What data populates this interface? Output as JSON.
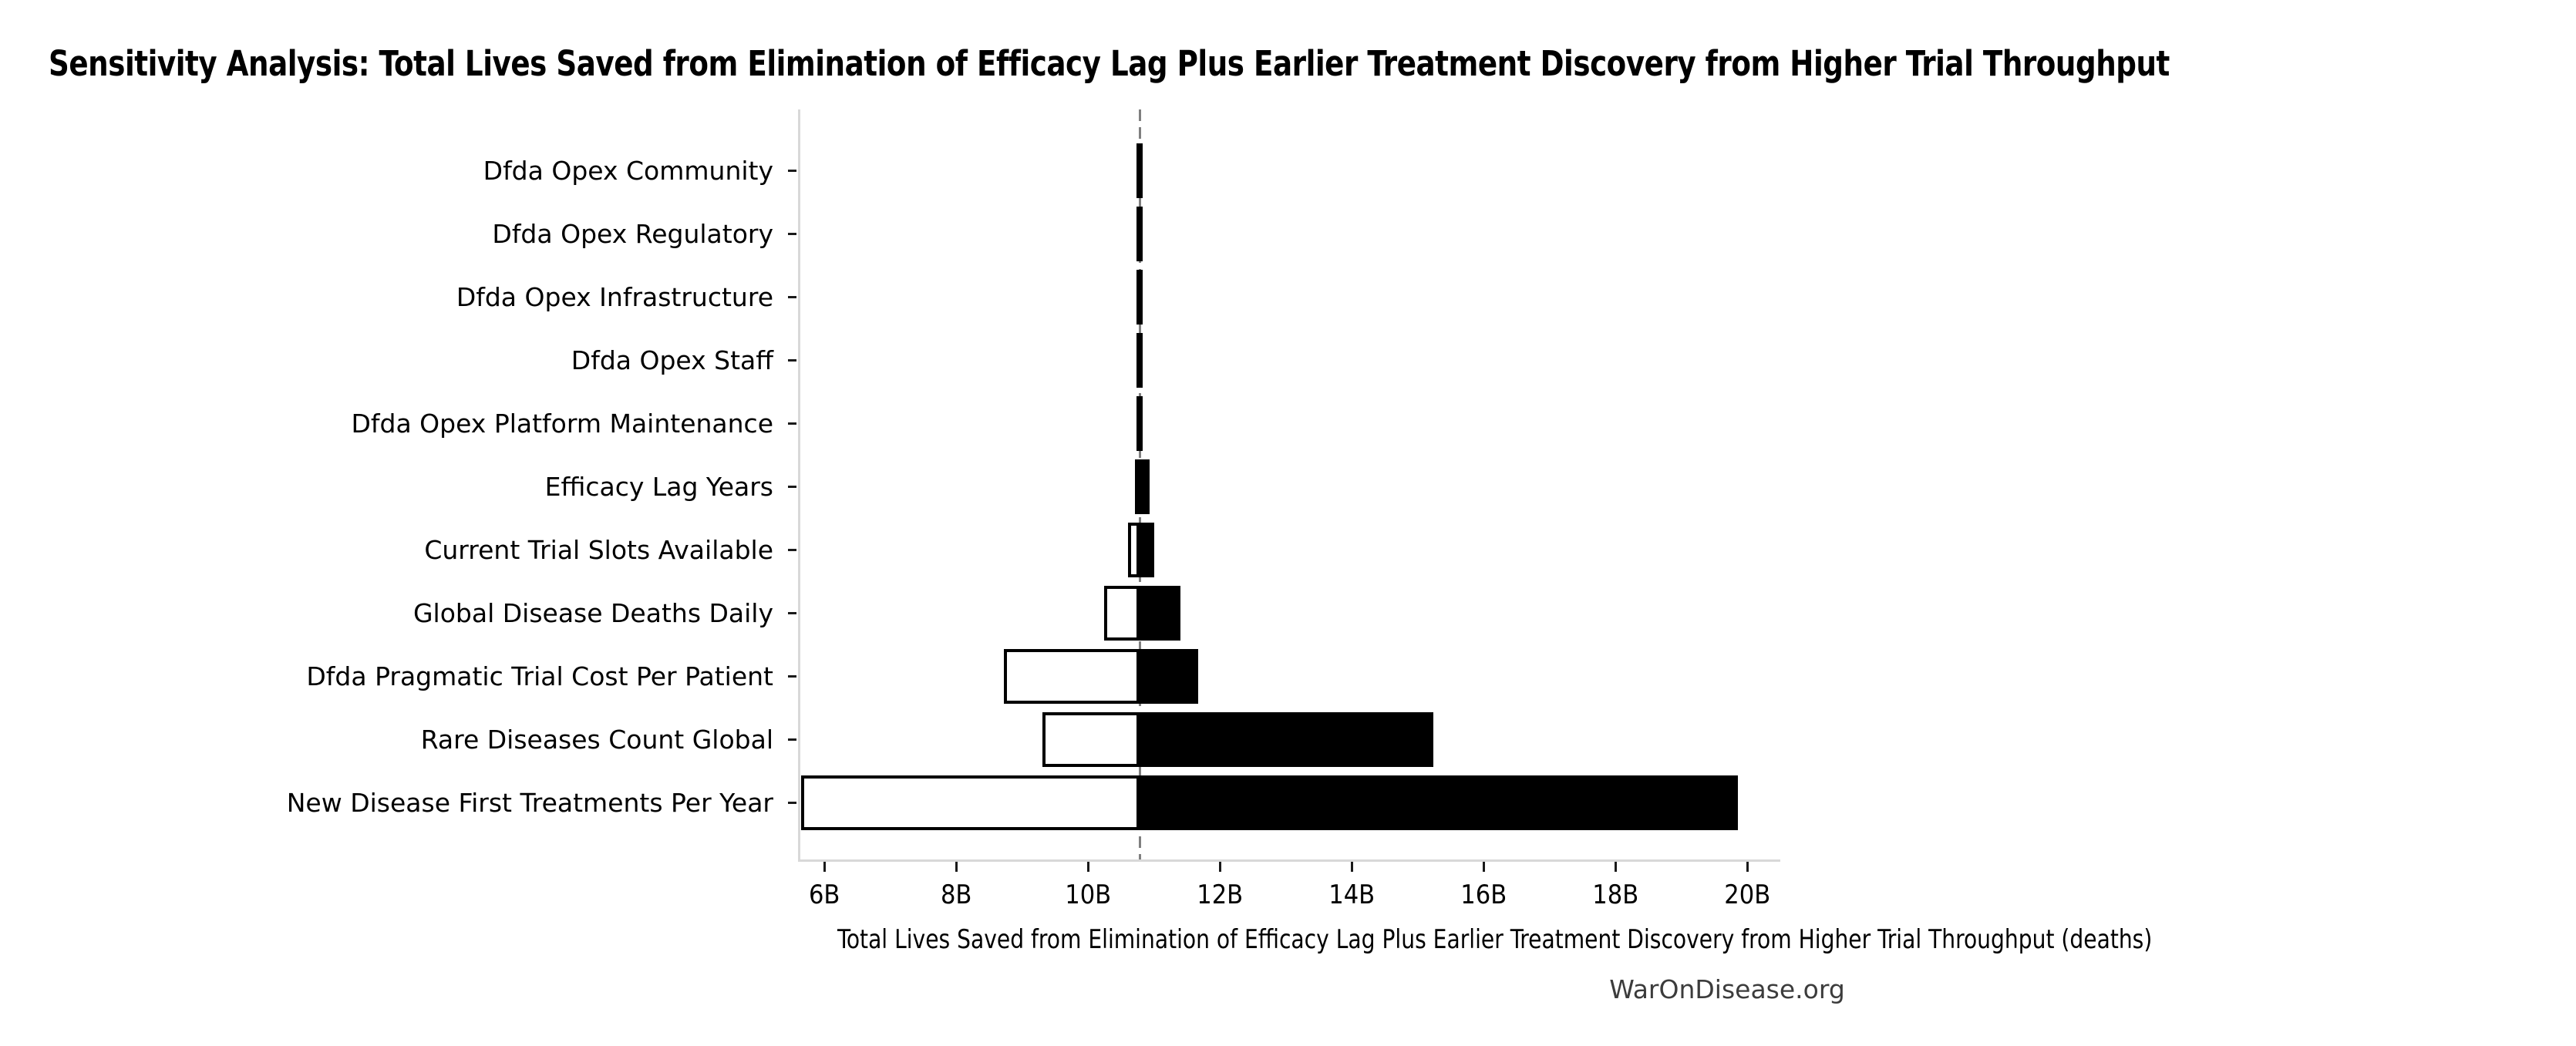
{
  "title": "Sensitivity Analysis: Total Lives Saved from Elimination of Efficacy Lag Plus Earlier Treatment Discovery from Higher Trial Throughput",
  "watermark": "WarOnDisease.org",
  "chart_data": {
    "type": "bar",
    "variant": "tornado-sensitivity",
    "orientation": "horizontal",
    "title": "Sensitivity Analysis: Total Lives Saved from Elimination of Efficacy Lag Plus Earlier Treatment Discovery from Higher Trial Throughput",
    "xlabel": "Total Lives Saved from Elimination of Efficacy Lag Plus Earlier Treatment Discovery from Higher Trial Throughput (deaths)",
    "ylabel": "",
    "value_unit": "B",
    "xlim": [
      5.6,
      20.5
    ],
    "x_tick_values": [
      6,
      8,
      10,
      12,
      14,
      16,
      18,
      20
    ],
    "x_tick_labels": [
      "6B",
      "8B",
      "10B",
      "12B",
      "14B",
      "16B",
      "18B",
      "20B"
    ],
    "baseline_value": 10.75,
    "grid": false,
    "legend": null,
    "rows": [
      {
        "label": "Dfda Opex Community",
        "low": 10.74,
        "high": 10.76
      },
      {
        "label": "Dfda Opex Regulatory",
        "low": 10.74,
        "high": 10.76
      },
      {
        "label": "Dfda Opex Infrastructure",
        "low": 10.74,
        "high": 10.76
      },
      {
        "label": "Dfda Opex Staff",
        "low": 10.74,
        "high": 10.76
      },
      {
        "label": "Dfda Opex Platform Maintenance",
        "low": 10.74,
        "high": 10.76
      },
      {
        "label": "Efficacy Lag Years",
        "low": 10.67,
        "high": 10.9
      },
      {
        "label": "Current Trial Slots Available",
        "low": 10.57,
        "high": 10.97
      },
      {
        "label": "Global Disease Deaths Daily",
        "low": 10.21,
        "high": 11.37
      },
      {
        "label": "Dfda Pragmatic Trial Cost Per Patient",
        "low": 8.69,
        "high": 11.63
      },
      {
        "label": "Rare Diseases Count Global",
        "low": 9.27,
        "high": 15.2
      },
      {
        "label": "New Disease First Treatments Per Year",
        "low": 5.61,
        "high": 19.82
      }
    ],
    "colors": {
      "low_bar_fill": "#ffffff",
      "high_bar_fill": "#000000",
      "bar_edge": "#000000",
      "baseline_dash": "#7f7f7f",
      "spine": "#d8d8d8",
      "tick": "#1a1a1a",
      "text": "#000000",
      "watermark_text": "#3c3c3c"
    }
  }
}
